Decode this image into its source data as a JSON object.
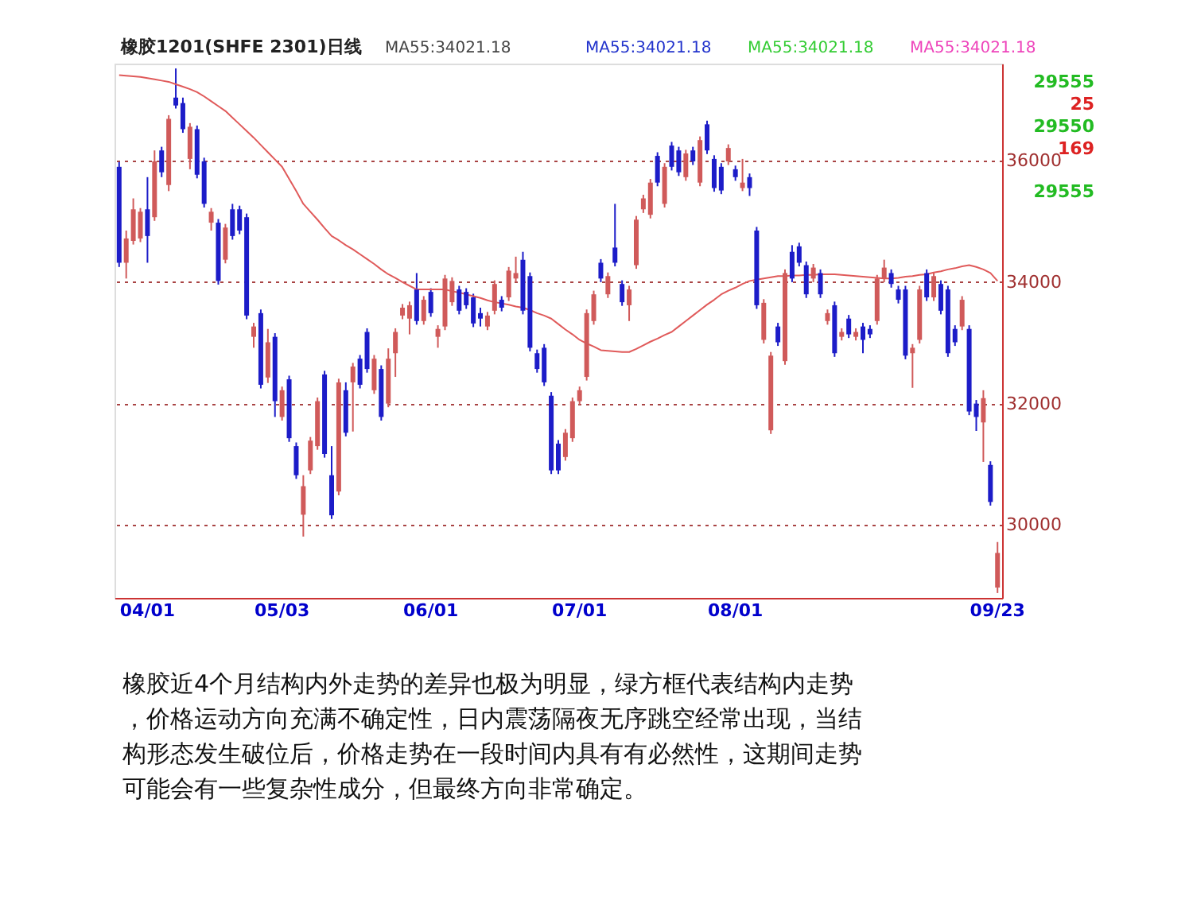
{
  "chart_data": {
    "type": "candlestick",
    "title": "橡胶1201(SHFE 2301)日线",
    "categories": [
      null,
      null,
      null,
      null,
      "04/01",
      null,
      null,
      null,
      null,
      null,
      null,
      null,
      null,
      null,
      null,
      null,
      null,
      null,
      null,
      null,
      null,
      null,
      null,
      "05/03",
      null,
      null,
      null,
      null,
      null,
      null,
      null,
      null,
      null,
      null,
      null,
      null,
      null,
      null,
      null,
      null,
      null,
      null,
      null,
      null,
      "06/01",
      null,
      null,
      null,
      null,
      null,
      null,
      null,
      null,
      null,
      null,
      null,
      null,
      null,
      null,
      null,
      null,
      null,
      null,
      null,
      null,
      "07/01",
      null,
      null,
      null,
      null,
      null,
      null,
      null,
      null,
      null,
      null,
      null,
      null,
      null,
      null,
      null,
      null,
      null,
      null,
      null,
      null,
      null,
      "08/01",
      null,
      null,
      null,
      null,
      null,
      null,
      null,
      null,
      null,
      null,
      null,
      null,
      null,
      null,
      null,
      null,
      null,
      null,
      null,
      null,
      null,
      null,
      null,
      null,
      null,
      null,
      null,
      null,
      null,
      null,
      null,
      null,
      null,
      null,
      null,
      null,
      "09/23"
    ],
    "ohlc": [
      [
        35900,
        35980,
        34250,
        34320
      ],
      [
        34320,
        34850,
        34060,
        34720
      ],
      [
        34680,
        35380,
        34620,
        35200
      ],
      [
        34720,
        35220,
        34660,
        35160
      ],
      [
        35200,
        35730,
        34320,
        34760
      ],
      [
        35070,
        36170,
        35010,
        35990
      ],
      [
        36170,
        36230,
        35730,
        35810
      ],
      [
        35600,
        36750,
        35500,
        36690
      ],
      [
        37040,
        37520,
        36860,
        36910
      ],
      [
        36950,
        37040,
        36460,
        36520
      ],
      [
        36030,
        36620,
        35860,
        36560
      ],
      [
        36520,
        36580,
        35710,
        35770
      ],
      [
        35990,
        36050,
        35230,
        35290
      ],
      [
        34980,
        35220,
        34850,
        35160
      ],
      [
        34980,
        35040,
        33960,
        34020
      ],
      [
        34370,
        34960,
        34310,
        34900
      ],
      [
        35200,
        35290,
        34700,
        34760
      ],
      [
        35200,
        35260,
        34790,
        34850
      ],
      [
        35070,
        35130,
        33390,
        33450
      ],
      [
        33100,
        33330,
        32920,
        33270
      ],
      [
        33490,
        33550,
        32250,
        32310
      ],
      [
        32430,
        33230,
        32340,
        33010
      ],
      [
        33100,
        33160,
        31780,
        32040
      ],
      [
        31780,
        32280,
        31720,
        32220
      ],
      [
        32400,
        32460,
        31370,
        31430
      ],
      [
        31300,
        31360,
        30760,
        30820
      ],
      [
        30170,
        30820,
        29810,
        30640
      ],
      [
        30900,
        31450,
        30840,
        31390
      ],
      [
        31300,
        32100,
        31240,
        32040
      ],
      [
        32480,
        32540,
        31110,
        31170
      ],
      [
        30820,
        31300,
        30100,
        30160
      ],
      [
        30550,
        32410,
        30490,
        32350
      ],
      [
        32220,
        32350,
        31460,
        31520
      ],
      [
        32350,
        32670,
        31540,
        32610
      ],
      [
        32740,
        32800,
        32250,
        32310
      ],
      [
        33180,
        33240,
        32510,
        32570
      ],
      [
        32220,
        32800,
        32160,
        32740
      ],
      [
        32570,
        32630,
        31720,
        31780
      ],
      [
        32000,
        32910,
        31940,
        32740
      ],
      [
        32830,
        33240,
        32440,
        33180
      ],
      [
        33450,
        33640,
        33390,
        33580
      ],
      [
        33400,
        33680,
        33140,
        33620
      ],
      [
        33880,
        34150,
        33300,
        33360
      ],
      [
        33360,
        33770,
        33300,
        33710
      ],
      [
        33840,
        33900,
        33430,
        33490
      ],
      [
        33100,
        33290,
        32920,
        33230
      ],
      [
        33270,
        34120,
        33210,
        34060
      ],
      [
        33670,
        34080,
        33610,
        34020
      ],
      [
        33880,
        33940,
        33470,
        33530
      ],
      [
        33840,
        33900,
        33560,
        33620
      ],
      [
        33750,
        33810,
        33260,
        33320
      ],
      [
        33490,
        33580,
        33270,
        33400
      ],
      [
        33270,
        33510,
        33210,
        33450
      ],
      [
        33530,
        34030,
        33470,
        33970
      ],
      [
        33710,
        33770,
        33520,
        33580
      ],
      [
        33750,
        34250,
        33690,
        34190
      ],
      [
        34060,
        34420,
        34000,
        34150
      ],
      [
        34370,
        34500,
        33470,
        33530
      ],
      [
        34100,
        34160,
        32860,
        32920
      ],
      [
        32830,
        32890,
        32510,
        32570
      ],
      [
        32920,
        32980,
        32290,
        32350
      ],
      [
        32130,
        32190,
        30840,
        30900
      ],
      [
        31340,
        31400,
        30840,
        30900
      ],
      [
        31120,
        31580,
        31060,
        31520
      ],
      [
        31430,
        32100,
        31370,
        32040
      ],
      [
        32040,
        32280,
        31980,
        32220
      ],
      [
        32440,
        33550,
        32380,
        33490
      ],
      [
        33360,
        33860,
        33300,
        33800
      ],
      [
        34320,
        34380,
        34000,
        34060
      ],
      [
        33800,
        34160,
        33740,
        34100
      ],
      [
        34570,
        35290,
        34260,
        34320
      ],
      [
        33970,
        34030,
        33610,
        33670
      ],
      [
        33620,
        33940,
        33360,
        33880
      ],
      [
        34280,
        35090,
        34220,
        35030
      ],
      [
        35200,
        35440,
        35140,
        35380
      ],
      [
        35110,
        35700,
        35050,
        35640
      ],
      [
        36080,
        36140,
        35580,
        35640
      ],
      [
        35290,
        35960,
        35230,
        35900
      ],
      [
        36250,
        36310,
        35840,
        35900
      ],
      [
        36170,
        36230,
        35750,
        35810
      ],
      [
        35730,
        36180,
        35670,
        36120
      ],
      [
        36170,
        36230,
        35930,
        35990
      ],
      [
        35640,
        36400,
        35580,
        36340
      ],
      [
        36600,
        36660,
        36110,
        36170
      ],
      [
        36030,
        36090,
        35490,
        35550
      ],
      [
        35900,
        35960,
        35450,
        35510
      ],
      [
        35990,
        36270,
        35930,
        36210
      ],
      [
        35860,
        35920,
        35670,
        35730
      ],
      [
        35550,
        36030,
        35500,
        35640
      ],
      [
        35730,
        35790,
        35420,
        35550
      ],
      [
        34850,
        34910,
        33560,
        33620
      ],
      [
        33050,
        33720,
        32990,
        33660
      ],
      [
        31560,
        32850,
        31500,
        32790
      ],
      [
        33270,
        33330,
        32950,
        33010
      ],
      [
        32700,
        34210,
        32640,
        34150
      ],
      [
        34500,
        34610,
        34000,
        34060
      ],
      [
        34590,
        34650,
        34260,
        34320
      ],
      [
        34280,
        34340,
        33740,
        33800
      ],
      [
        34060,
        34300,
        34000,
        34240
      ],
      [
        34150,
        34210,
        33740,
        33800
      ],
      [
        33360,
        33550,
        33300,
        33490
      ],
      [
        33620,
        33680,
        32770,
        32830
      ],
      [
        33100,
        33240,
        33040,
        33180
      ],
      [
        33400,
        33460,
        33080,
        33140
      ],
      [
        33100,
        33240,
        33040,
        33180
      ],
      [
        33270,
        33330,
        32830,
        33050
      ],
      [
        33230,
        33290,
        33080,
        33140
      ],
      [
        33360,
        34120,
        33300,
        34060
      ],
      [
        34060,
        34370,
        34000,
        34240
      ],
      [
        34150,
        34210,
        33910,
        33970
      ],
      [
        33880,
        33940,
        33650,
        33710
      ],
      [
        33880,
        33940,
        32730,
        32790
      ],
      [
        32830,
        32980,
        32260,
        32920
      ],
      [
        33050,
        33940,
        32990,
        33880
      ],
      [
        34150,
        34210,
        33690,
        33750
      ],
      [
        33750,
        34160,
        33690,
        34100
      ],
      [
        33970,
        34030,
        33470,
        33530
      ],
      [
        33880,
        33940,
        32770,
        32830
      ],
      [
        33230,
        33290,
        32950,
        33010
      ],
      [
        33270,
        33770,
        33210,
        33710
      ],
      [
        33230,
        33290,
        31810,
        31870
      ],
      [
        32000,
        32060,
        31550,
        31780
      ],
      [
        31690,
        32220,
        31040,
        32090
      ],
      [
        30990,
        31050,
        30320,
        30380
      ],
      [
        28970,
        29720,
        28880,
        29540
      ]
    ],
    "colors": [
      "#1c1cc8",
      "#d05a5a",
      "#d05a5a",
      "#d05a5a",
      "#1c1cc8",
      "#d05a5a",
      "#1c1cc8",
      "#d05a5a",
      "#1c1cc8",
      "#1c1cc8",
      "#d05a5a",
      "#1c1cc8",
      "#1c1cc8",
      "#d05a5a",
      "#1c1cc8",
      "#d05a5a",
      "#1c1cc8",
      "#1c1cc8",
      "#1c1cc8",
      "#d05a5a",
      "#1c1cc8",
      "#d05a5a",
      "#1c1cc8",
      "#d05a5a",
      "#1c1cc8",
      "#1c1cc8",
      "#d05a5a",
      "#d05a5a",
      "#d05a5a",
      "#1c1cc8",
      "#1c1cc8",
      "#d05a5a",
      "#1c1cc8",
      "#d05a5a",
      "#1c1cc8",
      "#1c1cc8",
      "#d05a5a",
      "#1c1cc8",
      "#d05a5a",
      "#d05a5a",
      "#d05a5a",
      "#d05a5a",
      "#1c1cc8",
      "#d05a5a",
      "#1c1cc8",
      "#d05a5a",
      "#d05a5a",
      "#d05a5a",
      "#1c1cc8",
      "#1c1cc8",
      "#1c1cc8",
      "#1c1cc8",
      "#d05a5a",
      "#d05a5a",
      "#1c1cc8",
      "#d05a5a",
      "#d05a5a",
      "#1c1cc8",
      "#1c1cc8",
      "#1c1cc8",
      "#1c1cc8",
      "#1c1cc8",
      "#1c1cc8",
      "#d05a5a",
      "#d05a5a",
      "#d05a5a",
      "#d05a5a",
      "#d05a5a",
      "#1c1cc8",
      "#d05a5a",
      "#1c1cc8",
      "#1c1cc8",
      "#d05a5a",
      "#d05a5a",
      "#d05a5a",
      "#d05a5a",
      "#1c1cc8",
      "#d05a5a",
      "#1c1cc8",
      "#1c1cc8",
      "#d05a5a",
      "#1c1cc8",
      "#d05a5a",
      "#1c1cc8",
      "#1c1cc8",
      "#1c1cc8",
      "#d05a5a",
      "#1c1cc8",
      "#d05a5a",
      "#1c1cc8",
      "#1c1cc8",
      "#d05a5a",
      "#d05a5a",
      "#1c1cc8",
      "#d05a5a",
      "#1c1cc8",
      "#1c1cc8",
      "#1c1cc8",
      "#d05a5a",
      "#1c1cc8",
      "#d05a5a",
      "#1c1cc8",
      "#d05a5a",
      "#1c1cc8",
      "#d05a5a",
      "#1c1cc8",
      "#1c1cc8",
      "#d05a5a",
      "#d05a5a",
      "#1c1cc8",
      "#1c1cc8",
      "#1c1cc8",
      "#d05a5a",
      "#d05a5a",
      "#1c1cc8",
      "#d05a5a",
      "#1c1cc8",
      "#1c1cc8",
      "#1c1cc8",
      "#d05a5a",
      "#1c1cc8",
      "#1c1cc8",
      "#d05a5a",
      "#1c1cc8",
      "#d05a5a"
    ],
    "series": [
      {
        "name": "MA55:34021.18",
        "type": "line",
        "color": "#e05a5a",
        "values": [
          37410,
          37400,
          37390,
          37380,
          37360,
          37340,
          37320,
          37300,
          37260,
          37220,
          37180,
          37130,
          37060,
          36980,
          36900,
          36820,
          36710,
          36600,
          36490,
          36380,
          36260,
          36140,
          36020,
          35900,
          35700,
          35500,
          35290,
          35160,
          35030,
          34890,
          34760,
          34690,
          34610,
          34540,
          34460,
          34380,
          34300,
          34210,
          34130,
          34070,
          34000,
          33940,
          33880,
          33880,
          33880,
          33880,
          33880,
          33850,
          33830,
          33800,
          33770,
          33740,
          33700,
          33670,
          33650,
          33630,
          33600,
          33580,
          33540,
          33490,
          33450,
          33400,
          33310,
          33220,
          33140,
          33050,
          32990,
          32940,
          32880,
          32870,
          32860,
          32850,
          32850,
          32900,
          32960,
          33020,
          33070,
          33130,
          33180,
          33270,
          33360,
          33450,
          33540,
          33630,
          33710,
          33800,
          33860,
          33910,
          33970,
          34020,
          34040,
          34060,
          34080,
          34100,
          34100,
          34110,
          34110,
          34120,
          34120,
          34130,
          34130,
          34130,
          34120,
          34110,
          34100,
          34090,
          34080,
          34070,
          34060,
          34060,
          34070,
          34090,
          34100,
          34120,
          34130,
          34160,
          34180,
          34210,
          34230,
          34260,
          34280,
          34250,
          34210,
          34150,
          34020
        ]
      }
    ],
    "ylim": [
      28800,
      37600
    ],
    "yticks": [
      30000,
      32000,
      34000,
      36000
    ],
    "grid": "y",
    "annotations": [
      "MA55:34021.18",
      "MA55:34021.18",
      "MA55:34021.18",
      "29555",
      "25",
      "29550",
      "169",
      "29555",
      "橡胶近4个月结构内外走势的差异也极为明显，绿方框代表结构内走势，价格运动方向充满不确定性，日内震荡隔夜无序跳空经常出现，当结构形态发生破位后，价格走势在一段时间内具有有必然性，这期间走势可能会有一些复杂性成分，但最终方向非常确定。"
    ]
  }
}
